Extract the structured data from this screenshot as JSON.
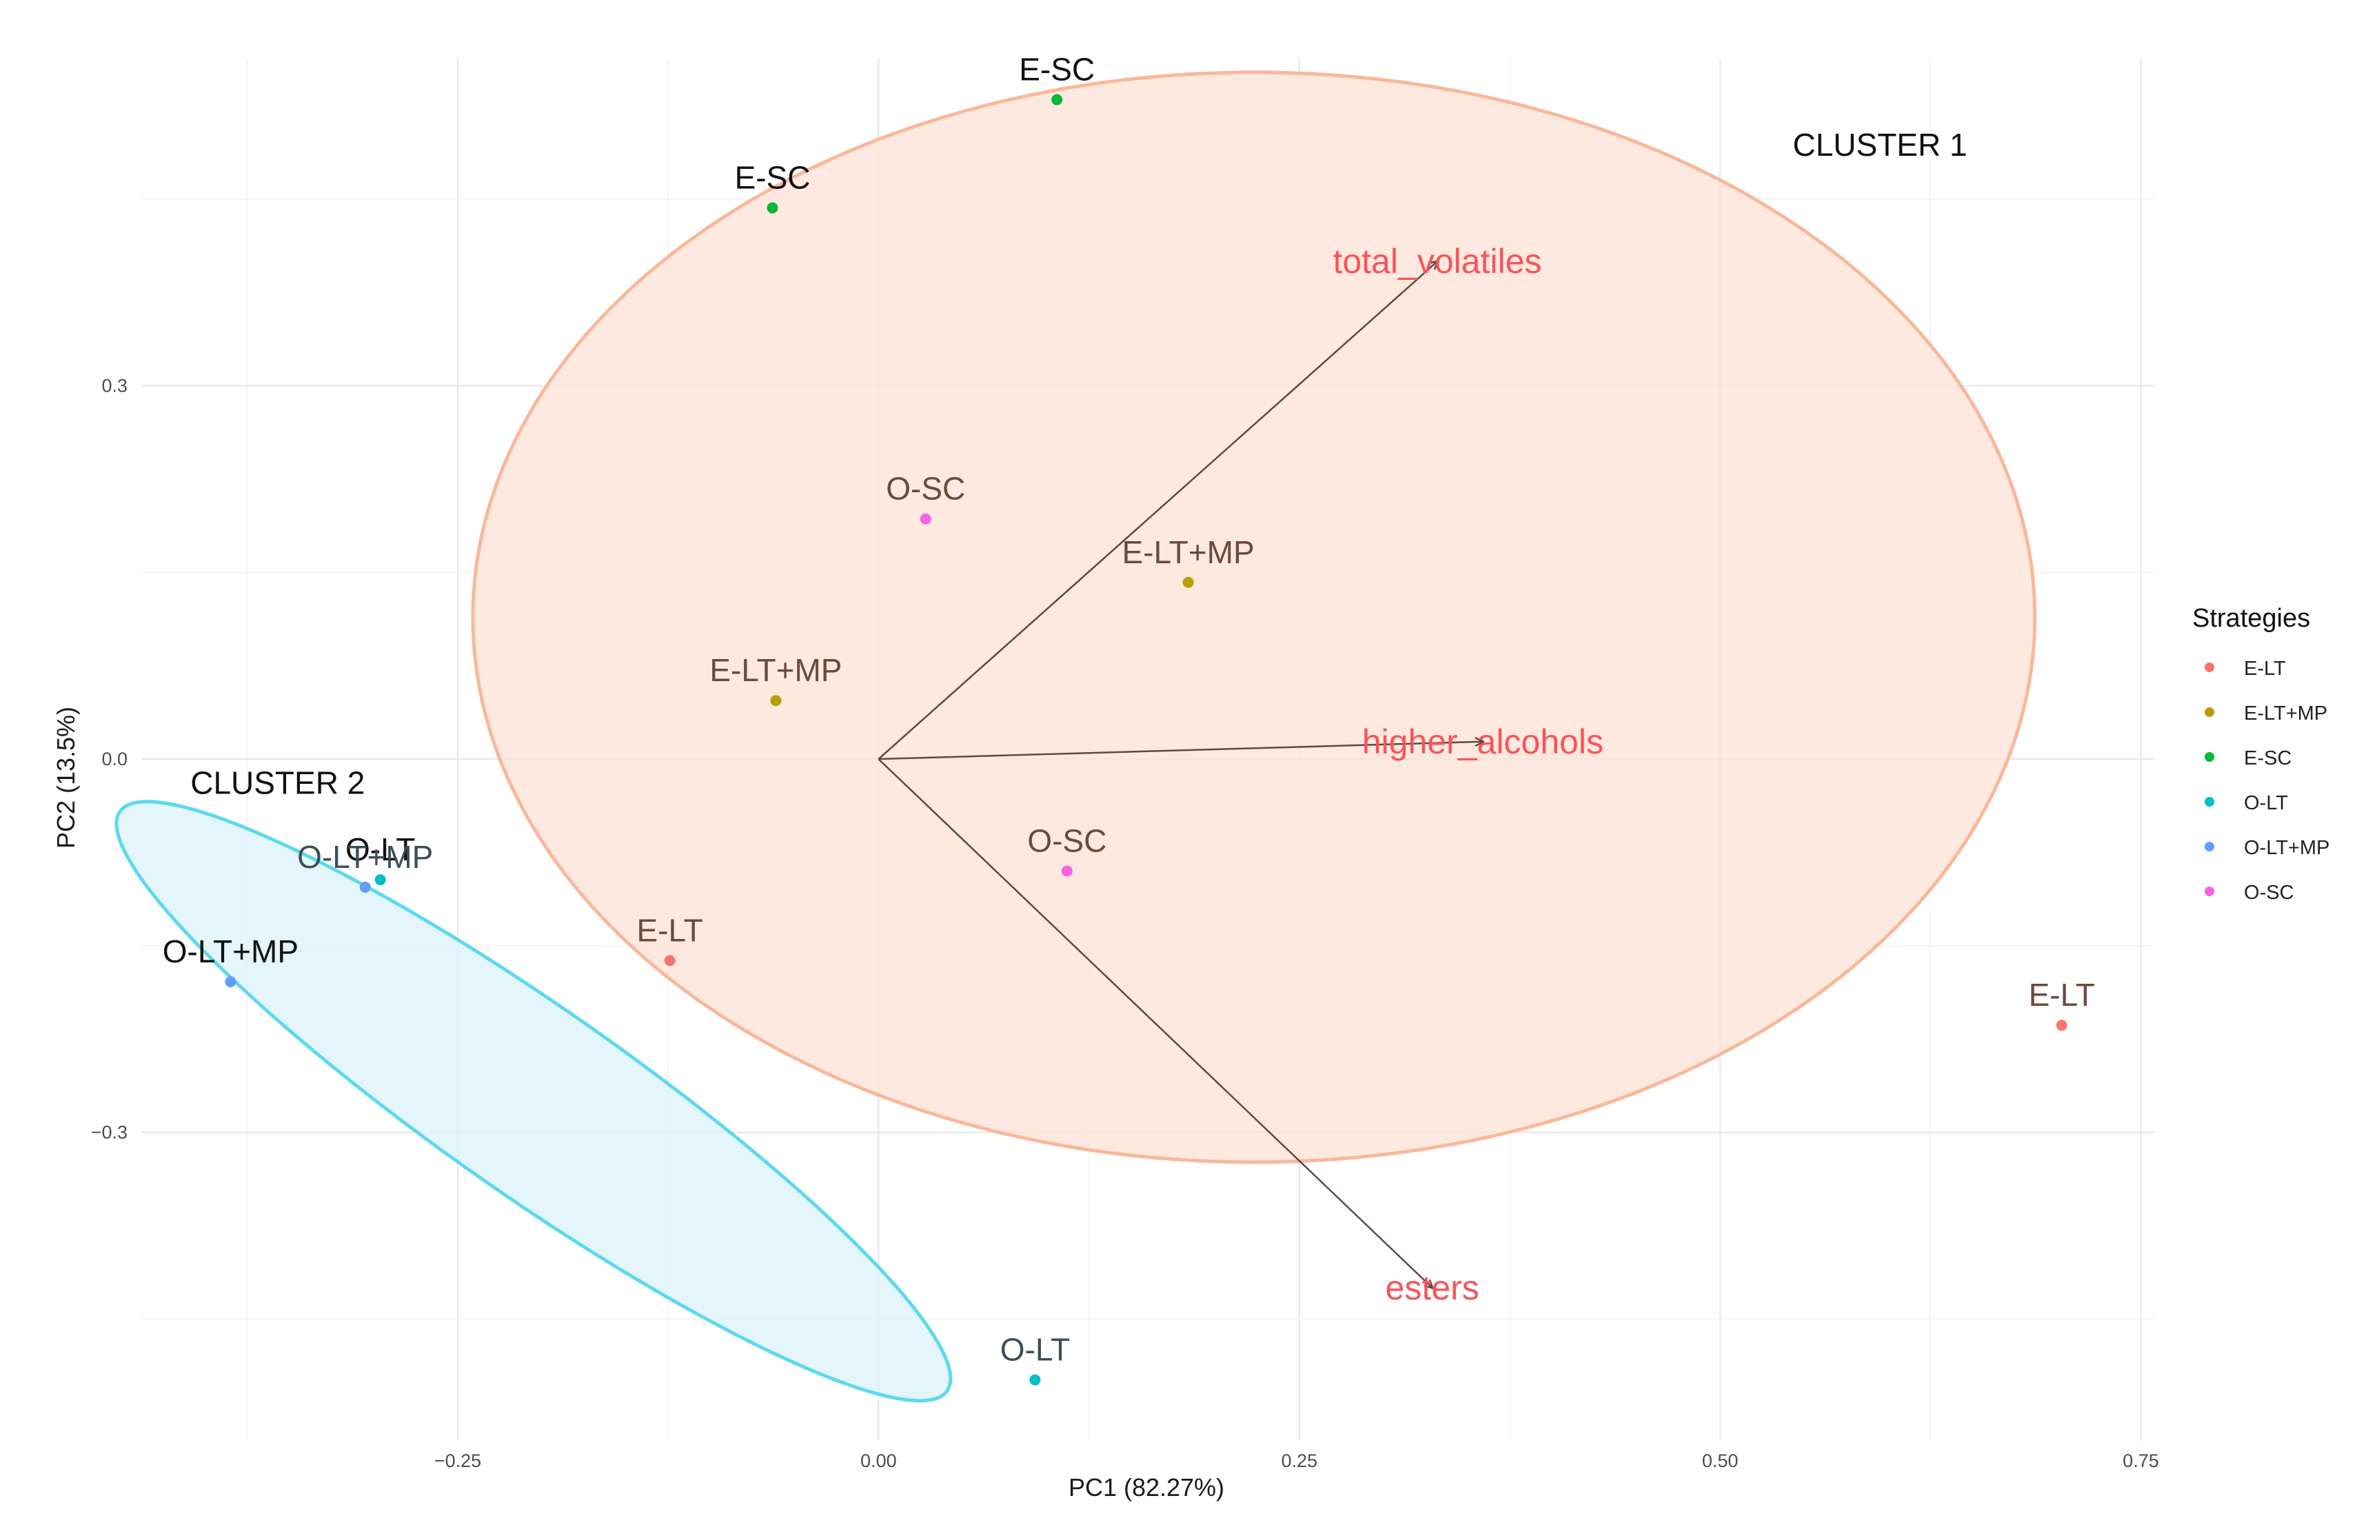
{
  "chart_data": {
    "type": "scatter",
    "xlabel": "PC1 (82.27%)",
    "ylabel": "PC2 (13.5%)",
    "xlim": [
      -0.438,
      0.758
    ],
    "ylim": [
      -0.548,
      0.563
    ],
    "x_ticks": [
      -0.25,
      0.0,
      0.25,
      0.5,
      0.75
    ],
    "x_tick_labels": [
      "−0.25",
      "0.00",
      "0.25",
      "0.50",
      "0.75"
    ],
    "y_ticks": [
      -0.3,
      0.0,
      0.3
    ],
    "y_tick_labels": [
      "−0.3",
      "0.0",
      "0.3"
    ],
    "grid": true,
    "legend": {
      "title": "Strategies",
      "placement": "right",
      "entries": [
        {
          "label": "E-LT",
          "color": "#f8766d"
        },
        {
          "label": "E-LT+MP",
          "color": "#b79f00"
        },
        {
          "label": "E-SC",
          "color": "#00ba38"
        },
        {
          "label": "O-LT",
          "color": "#00bfc4"
        },
        {
          "label": "O-LT+MP",
          "color": "#619cff"
        },
        {
          "label": "O-SC",
          "color": "#f564e3"
        }
      ]
    },
    "points": [
      {
        "label": "E-SC",
        "group": "E-SC",
        "x": 0.106,
        "y": 0.53,
        "label_color": "#111111"
      },
      {
        "label": "E-SC",
        "group": "E-SC",
        "x": -0.063,
        "y": 0.443,
        "label_color": "#111111"
      },
      {
        "label": "O-SC",
        "group": "O-SC",
        "x": 0.028,
        "y": 0.193,
        "label_color": "#6b4a3c"
      },
      {
        "label": "E-LT+MP",
        "group": "E-LT+MP",
        "x": 0.184,
        "y": 0.142,
        "label_color": "#6b4a3c"
      },
      {
        "label": "E-LT+MP",
        "group": "E-LT+MP",
        "x": -0.061,
        "y": 0.047,
        "label_color": "#6b4a3c"
      },
      {
        "label": "O-SC",
        "group": "O-SC",
        "x": 0.112,
        "y": -0.09,
        "label_color": "#6b4a3c"
      },
      {
        "label": "E-LT",
        "group": "E-LT",
        "x": -0.124,
        "y": -0.162,
        "label_color": "#6b4a3c"
      },
      {
        "label": "E-LT",
        "group": "E-LT",
        "x": 0.703,
        "y": -0.214,
        "label_color": "#6b4a3c"
      },
      {
        "label": "O-LT",
        "group": "O-LT",
        "x": -0.296,
        "y": -0.097,
        "label_color": "#111111"
      },
      {
        "label": "O-LT+MP",
        "group": "O-LT+MP",
        "x": -0.305,
        "y": -0.103,
        "label_color": "#3d4f58"
      },
      {
        "label": "O-LT+MP",
        "group": "O-LT+MP",
        "x": -0.385,
        "y": -0.179,
        "label_color": "#111111"
      },
      {
        "label": "O-LT",
        "group": "O-LT",
        "x": 0.093,
        "y": -0.499,
        "label_color": "#3d4f58"
      }
    ],
    "loadings": [
      {
        "name": "total_volatiles",
        "x": 0.332,
        "y": 0.4
      },
      {
        "name": "higher_alcohols",
        "x": 0.359,
        "y": 0.014
      },
      {
        "name": "esters",
        "x": 0.329,
        "y": -0.425
      }
    ],
    "clusters": [
      {
        "label": "CLUSTER 1",
        "center_x": 0.223,
        "center_y": 0.114,
        "radius_x": 0.464,
        "radius_y": 0.438,
        "rotation_deg": 0,
        "fill": "#fde3d6",
        "stroke": "#f9b89a",
        "label_x": 0.595,
        "label_y": 0.485
      },
      {
        "label": "CLUSTER 2",
        "center_x": -0.205,
        "center_y": -0.275,
        "radius_x": 0.3,
        "radius_y": 0.075,
        "rotation_deg": 35,
        "fill": "#dcf2fa",
        "stroke": "#5dd9ef",
        "label_x": -0.357,
        "label_y": -0.028
      }
    ]
  }
}
